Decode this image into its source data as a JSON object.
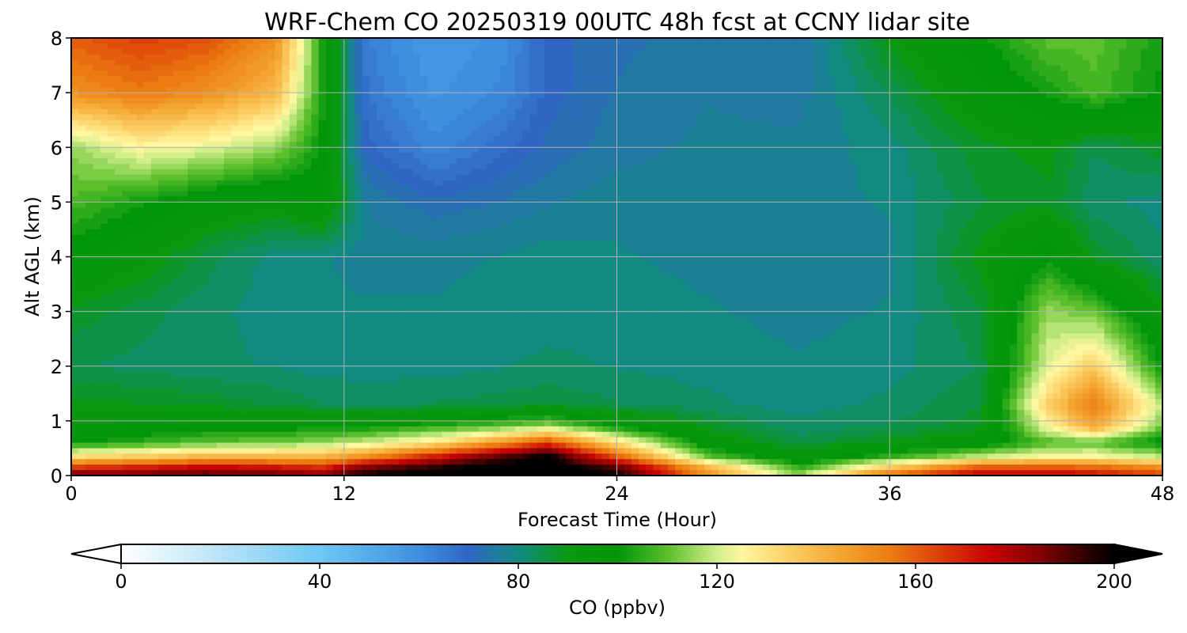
{
  "chart_data": {
    "type": "heatmap",
    "title": "WRF-Chem CO  20250319 00UTC 48h fcst at CCNY lidar site",
    "xlabel": "Forecast Time (Hour)",
    "ylabel": "Alt AGL (km)",
    "xlim": [
      0,
      48
    ],
    "ylim": [
      0,
      8
    ],
    "x_ticks": [
      "0",
      "12",
      "24",
      "36",
      "48"
    ],
    "y_ticks": [
      "0",
      "1",
      "2",
      "3",
      "4",
      "5",
      "6",
      "7",
      "8"
    ],
    "grid": true,
    "colorbar": {
      "label": "CO  (ppbv)",
      "range": [
        0,
        200
      ],
      "extend": "both",
      "orientation": "horizontal",
      "ticks": [
        "0",
        "40",
        "80",
        "120",
        "160",
        "200"
      ]
    },
    "x_hours": [
      0,
      3,
      6,
      9,
      11,
      13,
      16,
      19,
      21,
      24,
      28,
      32,
      36,
      40,
      43,
      45,
      48
    ],
    "y_km": [
      0,
      0.15,
      0.35,
      0.6,
      0.9,
      1.3,
      2,
      3,
      4,
      5,
      6,
      7,
      8
    ],
    "co_ppbv": [
      [
        190,
        190,
        192,
        190,
        185,
        200,
        205,
        205,
        205,
        200,
        150,
        115,
        160,
        180,
        180,
        175,
        165
      ],
      [
        165,
        170,
        175,
        172,
        168,
        185,
        195,
        205,
        205,
        190,
        140,
        105,
        135,
        160,
        160,
        158,
        150
      ],
      [
        130,
        135,
        140,
        140,
        140,
        150,
        170,
        190,
        200,
        160,
        110,
        92,
        105,
        118,
        125,
        125,
        118
      ],
      [
        100,
        105,
        110,
        112,
        115,
        120,
        130,
        150,
        165,
        130,
        95,
        85,
        90,
        95,
        108,
        110,
        98
      ],
      [
        92,
        96,
        98,
        98,
        100,
        100,
        105,
        110,
        115,
        100,
        88,
        82,
        84,
        88,
        125,
        145,
        112
      ],
      [
        90,
        89,
        88,
        86,
        84,
        83,
        84,
        85,
        86,
        84,
        82,
        80,
        82,
        86,
        135,
        155,
        118
      ],
      [
        84,
        83,
        82,
        81,
        80,
        80,
        80,
        81,
        82,
        81,
        80,
        79,
        80,
        84,
        122,
        135,
        100
      ],
      [
        88,
        85,
        82,
        80,
        79,
        79,
        79,
        80,
        80,
        80,
        79,
        78,
        79,
        86,
        115,
        110,
        90
      ],
      [
        98,
        92,
        85,
        80,
        79,
        78,
        78,
        79,
        80,
        79,
        78,
        78,
        78,
        90,
        100,
        88,
        82
      ],
      [
        108,
        102,
        95,
        92,
        98,
        76,
        72,
        74,
        76,
        78,
        78,
        78,
        79,
        86,
        88,
        82,
        80
      ],
      [
        115,
        125,
        122,
        115,
        100,
        70,
        62,
        68,
        72,
        75,
        77,
        77,
        80,
        88,
        90,
        84,
        88
      ],
      [
        150,
        155,
        150,
        140,
        104,
        66,
        58,
        62,
        70,
        74,
        76,
        75,
        84,
        95,
        102,
        108,
        100
      ],
      [
        160,
        165,
        162,
        150,
        104,
        64,
        56,
        60,
        70,
        73,
        75,
        74,
        90,
        100,
        110,
        110,
        102
      ]
    ]
  }
}
